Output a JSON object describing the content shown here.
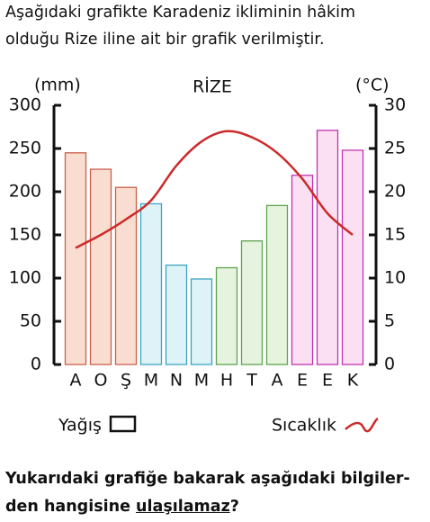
{
  "intro": [
    "Aşağıdaki grafikte Karadeniz ikliminin hâkim",
    "olduğu Rize iline ait bir grafik verilmiştir."
  ],
  "chart_data": {
    "type": "bar-line",
    "title": "RİZE",
    "y_label": "(mm)",
    "y2_label": "(°C)",
    "categories": [
      "A",
      "O",
      "Ş",
      "M",
      "N",
      "M",
      "H",
      "T",
      "A",
      "E",
      "E",
      "K"
    ],
    "series": [
      {
        "name": "Yağış",
        "type": "bar",
        "axis": "y",
        "values": [
          245,
          226,
          205,
          186,
          115,
          99,
          112,
          143,
          184,
          219,
          271,
          248
        ],
        "colors": [
          "#f9ddd0",
          "#f9ddd0",
          "#f9ddd0",
          "#def3f8",
          "#def3f8",
          "#def3f8",
          "#e5f3df",
          "#e5f3df",
          "#e5f3df",
          "#fbe0f4",
          "#fbe0f4",
          "#fbe0f4"
        ],
        "edge_colors": [
          "#c8604c",
          "#c8604c",
          "#c8604c",
          "#3ba4c2",
          "#3ba4c2",
          "#3ba4c2",
          "#5ea34c",
          "#5ea34c",
          "#5ea34c",
          "#c132b2",
          "#c132b2",
          "#c132b2"
        ]
      },
      {
        "name": "Sıcaklık",
        "type": "line",
        "axis": "y2",
        "color": "#cc2a2a",
        "values": [
          13.5,
          15,
          16.8,
          19,
          23,
          25.8,
          27,
          26.3,
          24.5,
          21.5,
          17.5,
          15
        ]
      }
    ],
    "ylim": [
      0,
      300
    ],
    "yticks": [
      0,
      50,
      100,
      150,
      200,
      250,
      300
    ],
    "y2lim": [
      0,
      30
    ],
    "y2ticks": [
      0,
      5,
      10,
      15,
      20,
      25,
      30
    ]
  },
  "question": {
    "text": "Yukarıdaki grafiğe bakarak aşağıdaki bilgiler-",
    "text2": "den hangisine",
    "emphasis": "ulaşılamaz",
    "end": "?"
  }
}
